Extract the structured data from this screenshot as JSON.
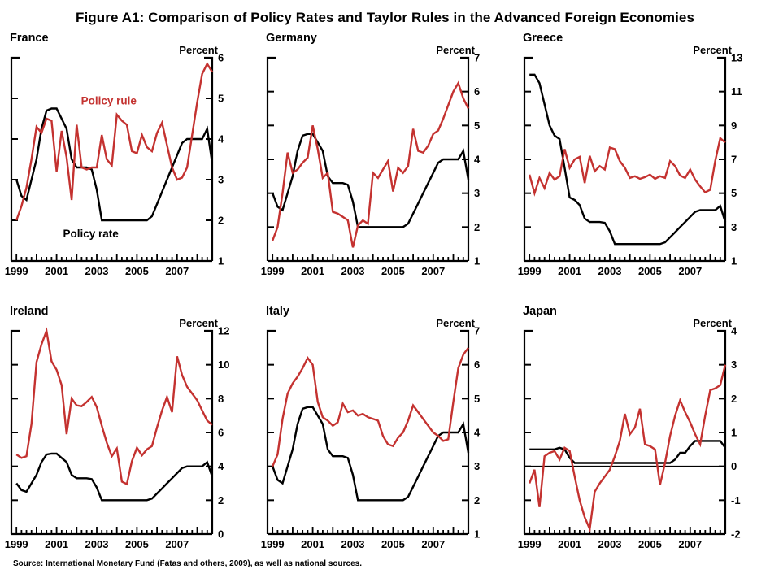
{
  "figure_title": "Figure A1: Comparison of Policy Rates and Taylor Rules in the Advanced Foreign Economies",
  "source_note": "Source: International Monetary Fund (Fatas and others, 2009), as well as national sources.",
  "colors": {
    "policy_rate": "#000000",
    "policy_rule": "#C43230"
  },
  "chart_data": {
    "type": "line",
    "x_range": [
      1998.75,
      2008.75
    ],
    "x_label_years": [
      1999,
      2001,
      2003,
      2005,
      2007
    ],
    "x_years": [
      1999.0,
      1999.25,
      1999.5,
      1999.75,
      2000.0,
      2000.25,
      2000.5,
      2000.75,
      2001.0,
      2001.25,
      2001.5,
      2001.75,
      2002.0,
      2002.25,
      2002.5,
      2002.75,
      2003.0,
      2003.25,
      2003.5,
      2003.75,
      2004.0,
      2004.25,
      2004.5,
      2004.75,
      2005.0,
      2005.25,
      2005.5,
      2005.75,
      2006.0,
      2006.25,
      2006.5,
      2006.75,
      2007.0,
      2007.25,
      2007.5,
      2007.75,
      2008.0,
      2008.25,
      2008.5,
      2008.75
    ],
    "panels": [
      {
        "title": "France",
        "ylabel": "Percent",
        "ylim": [
          1,
          6
        ],
        "ytick_step": 1,
        "series": [
          {
            "name": "Policy rate",
            "color": "policy_rate",
            "values": [
              3.0,
              2.6,
              2.5,
              3.0,
              3.5,
              4.25,
              4.7,
              4.75,
              4.75,
              4.5,
              4.25,
              3.5,
              3.3,
              3.3,
              3.3,
              3.25,
              2.75,
              2.0,
              2.0,
              2.0,
              2.0,
              2.0,
              2.0,
              2.0,
              2.0,
              2.0,
              2.0,
              2.1,
              2.4,
              2.7,
              3.0,
              3.3,
              3.6,
              3.9,
              4.0,
              4.0,
              4.0,
              4.0,
              4.25,
              3.4
            ]
          },
          {
            "name": "Policy rule",
            "color": "policy_rule",
            "values": [
              2.0,
              2.35,
              2.8,
              3.5,
              4.3,
              4.15,
              4.5,
              4.45,
              3.2,
              4.2,
              3.55,
              2.5,
              4.35,
              3.3,
              3.25,
              3.3,
              3.3,
              4.1,
              3.5,
              3.35,
              4.6,
              4.45,
              4.35,
              3.7,
              3.65,
              4.1,
              3.8,
              3.7,
              4.15,
              4.4,
              3.85,
              3.3,
              3.0,
              3.05,
              3.3,
              4.1,
              4.9,
              5.6,
              5.85,
              5.65
            ]
          }
        ],
        "annotations": [
          {
            "text": "Policy rule",
            "color": "policy_rule",
            "x": 2003.6,
            "y": 4.85
          },
          {
            "text": "Policy rate",
            "color": "policy_rate",
            "x": 2002.7,
            "y": 1.58
          }
        ]
      },
      {
        "title": "Germany",
        "ylabel": "Percent",
        "ylim": [
          1,
          7
        ],
        "ytick_step": 1,
        "series": [
          {
            "name": "Policy rate",
            "color": "policy_rate",
            "values": [
              3.0,
              2.6,
              2.5,
              3.0,
              3.5,
              4.25,
              4.7,
              4.75,
              4.75,
              4.5,
              4.25,
              3.5,
              3.3,
              3.3,
              3.3,
              3.25,
              2.75,
              2.0,
              2.0,
              2.0,
              2.0,
              2.0,
              2.0,
              2.0,
              2.0,
              2.0,
              2.0,
              2.1,
              2.4,
              2.7,
              3.0,
              3.3,
              3.6,
              3.9,
              4.0,
              4.0,
              4.0,
              4.0,
              4.25,
              3.4
            ]
          },
          {
            "name": "Policy rule",
            "color": "policy_rule",
            "values": [
              1.6,
              2.0,
              3.0,
              4.2,
              3.6,
              3.7,
              3.9,
              4.05,
              5.0,
              4.3,
              3.45,
              3.6,
              2.45,
              2.4,
              2.3,
              2.2,
              1.4,
              2.05,
              2.2,
              2.1,
              3.6,
              3.45,
              3.7,
              3.95,
              3.05,
              3.75,
              3.6,
              3.8,
              4.9,
              4.25,
              4.2,
              4.4,
              4.75,
              4.85,
              5.2,
              5.6,
              6.0,
              6.25,
              5.8,
              5.5
            ]
          }
        ],
        "annotations": []
      },
      {
        "title": "Greece",
        "ylabel": "Percent",
        "ylim": [
          1,
          13
        ],
        "ytick_step": 2,
        "series": [
          {
            "name": "Policy rate",
            "color": "policy_rate",
            "values": [
              12.0,
              12.0,
              11.5,
              10.25,
              9.0,
              8.4,
              8.2,
              6.5,
              4.75,
              4.6,
              4.3,
              3.5,
              3.3,
              3.3,
              3.3,
              3.25,
              2.75,
              2.0,
              2.0,
              2.0,
              2.0,
              2.0,
              2.0,
              2.0,
              2.0,
              2.0,
              2.0,
              2.1,
              2.4,
              2.7,
              3.0,
              3.3,
              3.6,
              3.9,
              4.0,
              4.0,
              4.0,
              4.0,
              4.25,
              3.3
            ]
          },
          {
            "name": "Policy rule",
            "color": "policy_rule",
            "values": [
              6.1,
              5.0,
              5.9,
              5.3,
              6.2,
              5.8,
              6.0,
              7.6,
              6.5,
              7.0,
              7.15,
              5.6,
              7.2,
              6.3,
              6.6,
              6.4,
              7.7,
              7.6,
              6.9,
              6.5,
              5.9,
              6.0,
              5.85,
              5.95,
              6.1,
              5.85,
              6.0,
              5.9,
              6.9,
              6.6,
              6.05,
              5.9,
              6.4,
              5.8,
              5.4,
              5.05,
              5.2,
              6.9,
              8.25,
              8.0
            ]
          }
        ],
        "annotations": []
      },
      {
        "title": "Ireland",
        "ylabel": "Percent",
        "ylim": [
          0,
          12
        ],
        "ytick_step": 2,
        "series": [
          {
            "name": "Policy rate",
            "color": "policy_rate",
            "values": [
              3.0,
              2.6,
              2.5,
              3.0,
              3.5,
              4.25,
              4.7,
              4.75,
              4.75,
              4.5,
              4.25,
              3.5,
              3.3,
              3.3,
              3.3,
              3.25,
              2.75,
              2.0,
              2.0,
              2.0,
              2.0,
              2.0,
              2.0,
              2.0,
              2.0,
              2.0,
              2.0,
              2.1,
              2.4,
              2.7,
              3.0,
              3.3,
              3.6,
              3.9,
              4.0,
              4.0,
              4.0,
              4.0,
              4.25,
              3.4
            ]
          },
          {
            "name": "Policy rule",
            "color": "policy_rule",
            "values": [
              4.7,
              4.5,
              4.6,
              6.5,
              10.15,
              11.2,
              12.0,
              10.2,
              9.7,
              8.8,
              5.9,
              8.0,
              7.6,
              7.55,
              7.8,
              8.1,
              7.5,
              6.4,
              5.4,
              4.6,
              5.05,
              3.1,
              2.95,
              4.3,
              5.1,
              4.65,
              5.0,
              5.2,
              6.3,
              7.3,
              8.1,
              7.2,
              10.5,
              9.4,
              8.7,
              8.3,
              7.9,
              7.3,
              6.7,
              6.45
            ]
          }
        ],
        "annotations": []
      },
      {
        "title": "Italy",
        "ylabel": "Percent",
        "ylim": [
          1,
          7
        ],
        "ytick_step": 1,
        "series": [
          {
            "name": "Policy rate",
            "color": "policy_rate",
            "values": [
              3.0,
              2.6,
              2.5,
              3.0,
              3.5,
              4.25,
              4.7,
              4.75,
              4.75,
              4.5,
              4.25,
              3.5,
              3.3,
              3.3,
              3.3,
              3.25,
              2.75,
              2.0,
              2.0,
              2.0,
              2.0,
              2.0,
              2.0,
              2.0,
              2.0,
              2.0,
              2.0,
              2.1,
              2.4,
              2.7,
              3.0,
              3.3,
              3.6,
              3.9,
              4.0,
              4.0,
              4.0,
              4.0,
              4.25,
              3.4
            ]
          },
          {
            "name": "Policy rule",
            "color": "policy_rule",
            "values": [
              3.0,
              3.35,
              4.4,
              5.15,
              5.45,
              5.65,
              5.9,
              6.2,
              6.0,
              4.9,
              4.45,
              4.35,
              4.2,
              4.3,
              4.85,
              4.6,
              4.65,
              4.5,
              4.55,
              4.45,
              4.4,
              4.35,
              3.9,
              3.65,
              3.6,
              3.85,
              4.0,
              4.35,
              4.8,
              4.6,
              4.4,
              4.2,
              4.0,
              3.9,
              3.75,
              3.8,
              4.9,
              5.9,
              6.3,
              6.5
            ]
          }
        ],
        "annotations": []
      },
      {
        "title": "Japan",
        "ylabel": "Percent",
        "ylim": [
          -2,
          4
        ],
        "ytick_step": 1,
        "zero_line": 0,
        "series": [
          {
            "name": "Policy rate",
            "color": "policy_rate",
            "values": [
              0.5,
              0.5,
              0.5,
              0.5,
              0.5,
              0.5,
              0.55,
              0.5,
              0.25,
              0.1,
              0.1,
              0.1,
              0.1,
              0.1,
              0.1,
              0.1,
              0.1,
              0.1,
              0.1,
              0.1,
              0.1,
              0.1,
              0.1,
              0.1,
              0.1,
              0.1,
              0.1,
              0.1,
              0.1,
              0.2,
              0.4,
              0.4,
              0.6,
              0.75,
              0.75,
              0.75,
              0.75,
              0.75,
              0.75,
              0.55
            ]
          },
          {
            "name": "Policy rule",
            "color": "policy_rule",
            "values": [
              -0.5,
              -0.1,
              -1.2,
              0.3,
              0.4,
              0.45,
              0.2,
              0.55,
              0.45,
              -0.3,
              -1.0,
              -1.5,
              -1.85,
              -0.75,
              -0.5,
              -0.3,
              -0.1,
              0.3,
              0.75,
              1.55,
              0.95,
              1.15,
              1.7,
              0.65,
              0.6,
              0.5,
              -0.55,
              0.1,
              0.9,
              1.5,
              1.95,
              1.6,
              1.3,
              0.95,
              0.65,
              1.5,
              2.25,
              2.3,
              2.4,
              3.0
            ]
          }
        ],
        "annotations": []
      }
    ]
  }
}
